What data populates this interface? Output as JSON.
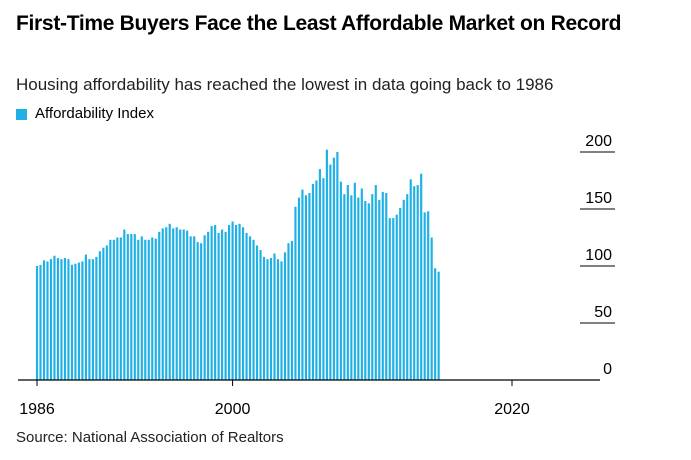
{
  "title": "First-Time Buyers Face the Least Affordable Market on Record",
  "subtitle": "Housing affordability has reached the lowest in data going back to 1986",
  "source": "Source: National Association of Realtors",
  "colors": {
    "bar": "#1fb1e6",
    "gridline": "#000000"
  },
  "chart_data": {
    "type": "bar",
    "title": "First-Time Buyers Face the Least Affordable Market on Record",
    "subtitle": "Housing affordability has reached the lowest in data going back to 1986",
    "legend": {
      "placement": "top-left",
      "entries": [
        "Affordability Index"
      ]
    },
    "series": [
      {
        "name": "Affordability Index",
        "x_start": 1986.0,
        "x_step": 0.25,
        "values": [
          100,
          101,
          105,
          104,
          106,
          109,
          107,
          106,
          107,
          106,
          101,
          102,
          103,
          104,
          110,
          106,
          106,
          108,
          113,
          116,
          118,
          123,
          123,
          125,
          125,
          132,
          128,
          128,
          128,
          123,
          126,
          123,
          123,
          125,
          124,
          130,
          133,
          134,
          137,
          133,
          134,
          132,
          132,
          131,
          126,
          126,
          121,
          120,
          127,
          130,
          135,
          136,
          129,
          132,
          130,
          136,
          139,
          136,
          137,
          134,
          129,
          126,
          123,
          118,
          114,
          108,
          106,
          107,
          111,
          106,
          104,
          112,
          120,
          122,
          152,
          160,
          167,
          162,
          164,
          172,
          175,
          185,
          177,
          202,
          189,
          195,
          200,
          174,
          163,
          171,
          162,
          173,
          160,
          168,
          157,
          155,
          163,
          171,
          158,
          165,
          164,
          142,
          142,
          145,
          151,
          158,
          163,
          176,
          170,
          171,
          181,
          147,
          148,
          125,
          98,
          95
        ]
      }
    ],
    "x_tick_labels": [
      "1986",
      "2000",
      "2020"
    ],
    "x_ticks": [
      1986,
      2000,
      2020
    ],
    "y_tick_labels": [
      "0",
      "50",
      "100",
      "150",
      "200"
    ],
    "y_ticks": [
      0,
      50,
      100,
      150,
      200
    ],
    "xlim": [
      1985.8,
      2023.5
    ],
    "ylim": [
      0,
      210
    ],
    "y_axis_side": "right",
    "grid": true
  }
}
